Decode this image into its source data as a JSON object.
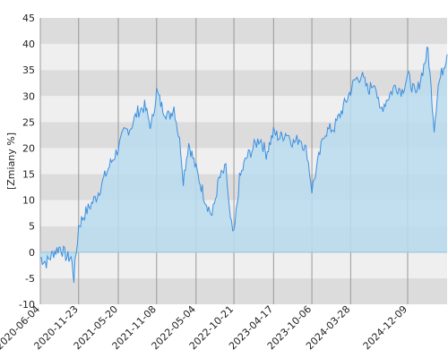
{
  "chart_data": {
    "type": "area",
    "title": "",
    "xlabel": "",
    "ylabel": "[Zmiany %]",
    "ylim": [
      -10,
      45
    ],
    "yticks": [
      -10,
      -5,
      0,
      5,
      10,
      15,
      20,
      25,
      30,
      35,
      40,
      45
    ],
    "xlim": [
      "2020-06-04",
      "2025-06-04"
    ],
    "xticks": [
      "2020-06-04",
      "2020-11-23",
      "2021-05-20",
      "2021-11-08",
      "2022-05-04",
      "2022-10-21",
      "2023-04-17",
      "2023-10-06",
      "2024-03-28",
      "2024-12-09"
    ],
    "grid": true,
    "legend": "none",
    "colors": {
      "line": "#3d8fe0",
      "fill": "#b9dcee",
      "band_light": "#efefef",
      "band_dark": "#dcdcdc",
      "gridline": "#999999"
    },
    "series": [
      {
        "x": [
          "2020-06-04",
          "2020-07-01",
          "2020-08-03",
          "2020-09-01",
          "2020-10-01",
          "2020-10-20",
          "2020-11-02",
          "2020-11-23",
          "2020-12-15",
          "2021-01-15",
          "2021-02-15",
          "2021-03-15",
          "2021-04-15",
          "2021-05-20",
          "2021-06-15",
          "2021-07-15",
          "2021-08-15",
          "2021-09-15",
          "2021-10-15",
          "2021-11-08",
          "2021-12-01",
          "2022-01-03",
          "2022-01-25",
          "2022-02-24",
          "2022-03-08",
          "2022-04-01",
          "2022-05-04",
          "2022-06-15",
          "2022-07-15",
          "2022-08-15",
          "2022-09-15",
          "2022-10-05",
          "2022-10-21",
          "2022-11-15",
          "2022-12-15",
          "2023-01-15",
          "2023-02-15",
          "2023-03-15",
          "2023-04-17",
          "2023-05-15",
          "2023-06-15",
          "2023-07-15",
          "2023-08-15",
          "2023-09-15",
          "2023-10-06",
          "2023-11-01",
          "2023-12-01",
          "2024-01-15",
          "2024-02-15",
          "2024-03-28",
          "2024-04-15",
          "2024-05-15",
          "2024-06-15",
          "2024-07-15",
          "2024-08-05",
          "2024-09-15",
          "2024-10-15",
          "2024-11-15",
          "2024-12-09",
          "2025-01-15",
          "2025-02-15",
          "2025-03-10",
          "2025-04-07",
          "2025-04-25",
          "2025-05-15",
          "2025-06-04"
        ],
        "y": [
          -1,
          -2,
          0,
          1,
          -1,
          -1,
          -5,
          5,
          7,
          9,
          11,
          14,
          17,
          20,
          23,
          24,
          27,
          28,
          24,
          31,
          28,
          26,
          28,
          20,
          14,
          21,
          16,
          10,
          7,
          14,
          16,
          6,
          3,
          14,
          18,
          20,
          22,
          19,
          23,
          22,
          23,
          21,
          22,
          19,
          12,
          17,
          23,
          24,
          27,
          31,
          33,
          34,
          31,
          33,
          27,
          30,
          32,
          31,
          34,
          30,
          35,
          39,
          24,
          32,
          35,
          38
        ]
      }
    ]
  }
}
